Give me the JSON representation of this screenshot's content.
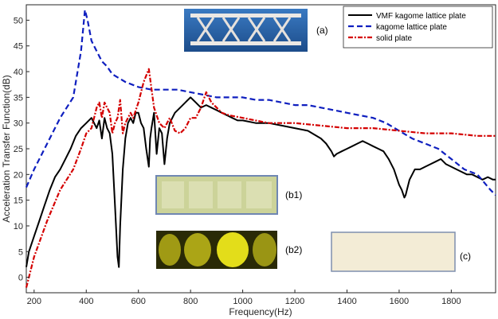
{
  "chart_data": {
    "type": "line",
    "xlabel": "Frequency(Hz)",
    "ylabel": "Acceleration Transfer Function(dB)",
    "xlim": [
      170,
      1970
    ],
    "ylim": [
      -3,
      53
    ],
    "xticks": [
      200,
      400,
      600,
      800,
      1000,
      1200,
      1400,
      1600,
      1800
    ],
    "yticks": [
      0,
      5,
      10,
      15,
      20,
      25,
      30,
      35,
      40,
      45,
      50
    ],
    "grid": false,
    "legend_position": "top-right",
    "series": [
      {
        "name": "VMF kagome lattice plate",
        "color": "#000000",
        "style": "solid",
        "x": [
          170,
          180,
          200,
          220,
          240,
          260,
          280,
          300,
          320,
          340,
          360,
          380,
          400,
          420,
          430,
          440,
          450,
          460,
          470,
          480,
          490,
          500,
          510,
          520,
          525,
          530,
          540,
          550,
          560,
          570,
          580,
          590,
          600,
          610,
          620,
          630,
          640,
          645,
          650,
          660,
          670,
          680,
          690,
          700,
          710,
          720,
          740,
          760,
          780,
          800,
          820,
          840,
          860,
          880,
          900,
          920,
          940,
          960,
          980,
          1000,
          1050,
          1100,
          1150,
          1200,
          1250,
          1300,
          1320,
          1340,
          1350,
          1360,
          1380,
          1400,
          1420,
          1440,
          1460,
          1480,
          1500,
          1520,
          1540,
          1560,
          1580,
          1600,
          1610,
          1620,
          1625,
          1630,
          1640,
          1660,
          1680,
          1700,
          1720,
          1740,
          1760,
          1780,
          1800,
          1820,
          1840,
          1860,
          1880,
          1900,
          1920,
          1940,
          1960,
          1970
        ],
        "y": [
          2,
          5,
          8,
          11,
          14,
          17,
          19.5,
          21,
          23,
          25,
          27.5,
          29,
          30,
          31,
          30,
          29,
          30.5,
          27,
          31,
          29,
          28,
          24,
          14,
          4,
          2,
          10,
          21,
          27,
          30,
          31,
          30,
          32,
          32,
          30,
          29,
          25,
          21.5,
          27,
          29,
          32,
          24,
          29,
          28,
          22,
          27,
          30,
          32,
          33,
          34,
          35,
          34,
          33,
          33.5,
          33,
          32.5,
          32,
          31.5,
          31,
          30.5,
          30.5,
          30,
          30,
          29.5,
          29,
          28.5,
          27,
          26,
          24.5,
          23.5,
          24,
          24.5,
          25,
          25.5,
          26,
          26.5,
          26,
          25.5,
          25,
          24.5,
          23,
          21,
          18,
          17,
          15.5,
          16,
          17,
          19,
          21,
          21,
          21.5,
          22,
          22.5,
          23,
          22,
          21.5,
          21,
          20.5,
          20,
          20,
          19.5,
          19,
          19.5,
          19,
          19
        ]
      },
      {
        "name": "kagome lattice plate",
        "color": "#0f1fbf",
        "style": "dashed",
        "x": [
          170,
          200,
          250,
          300,
          350,
          380,
          395,
          405,
          420,
          440,
          460,
          480,
          500,
          550,
          600,
          650,
          700,
          750,
          800,
          850,
          900,
          950,
          1000,
          1050,
          1100,
          1150,
          1200,
          1250,
          1300,
          1350,
          1400,
          1450,
          1500,
          1550,
          1600,
          1650,
          1700,
          1750,
          1800,
          1850,
          1900,
          1950,
          1970
        ],
        "y": [
          17.5,
          21,
          26,
          31,
          35,
          44,
          52,
          50,
          46,
          44,
          42,
          41,
          39.5,
          38,
          37,
          36.5,
          36.5,
          36.5,
          36,
          35.5,
          35,
          35,
          35,
          34.5,
          34.5,
          34,
          33.5,
          33.5,
          33,
          32.5,
          32,
          31.5,
          31,
          30,
          28.5,
          27,
          26,
          25,
          23,
          21,
          20,
          17,
          16
        ]
      },
      {
        "name": "solid plate",
        "color": "#d40000",
        "style": "dash-dot",
        "x": [
          170,
          200,
          250,
          300,
          350,
          380,
          400,
          420,
          440,
          450,
          460,
          470,
          480,
          490,
          500,
          510,
          520,
          530,
          540,
          550,
          560,
          570,
          580,
          600,
          620,
          640,
          660,
          680,
          700,
          720,
          740,
          760,
          780,
          800,
          820,
          840,
          860,
          880,
          900,
          920,
          950,
          1000,
          1100,
          1200,
          1300,
          1400,
          1500,
          1600,
          1700,
          1800,
          1900,
          1970
        ],
        "y": [
          -2,
          4,
          11,
          17,
          21,
          25,
          28,
          29,
          33,
          34,
          31,
          34,
          33,
          32,
          28,
          30,
          31,
          34.5,
          28,
          30,
          31,
          32,
          31,
          34,
          38,
          40.5,
          33,
          30,
          29,
          31,
          28.5,
          28,
          29,
          31,
          31,
          33,
          36,
          34,
          33,
          32,
          31.5,
          31,
          30,
          30,
          29.5,
          29,
          29,
          28.5,
          28,
          28,
          27.5,
          27.5
        ]
      }
    ]
  },
  "insets": [
    {
      "label": "(a)",
      "color_top": "#2f6fb8",
      "color_bottom": "#1d4f8f",
      "structure": "#ece8e4"
    },
    {
      "label": "(b1)",
      "color": "#cdd39a"
    },
    {
      "label": "(b2)",
      "color": "#9e9a12"
    },
    {
      "label": "(c)",
      "color": "#f3ecd6"
    }
  ]
}
